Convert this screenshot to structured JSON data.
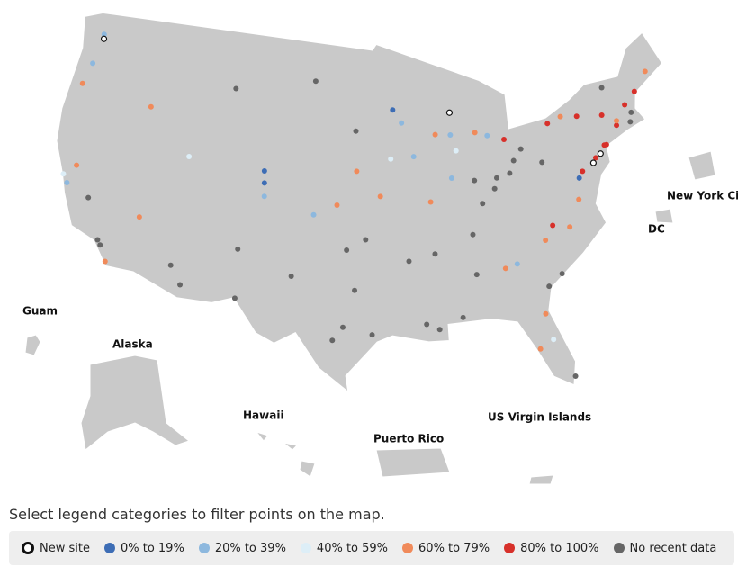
{
  "note_text": "Select legend categories to filter points on the map.",
  "insets": [
    "Guam",
    "Alaska",
    "Hawaii",
    "Puerto Rico",
    "US Virgin Islands",
    "New York Ci",
    "DC"
  ],
  "legend": [
    {
      "label": "New site",
      "color": "#ffffff"
    },
    {
      "label": "0% to 19%",
      "color": "#3d6db5"
    },
    {
      "label": "20% to 39%",
      "color": "#8db8de"
    },
    {
      "label": "40% to 59%",
      "color": "#ddeef7"
    },
    {
      "label": "60% to 79%",
      "color": "#f08a5a"
    },
    {
      "label": "80% to 100%",
      "color": "#d7302a"
    },
    {
      "label": "No recent data",
      "color": "#666666"
    }
  ],
  "points": [
    [
      -122.3,
      47.6,
      2
    ],
    [
      -122.6,
      45.5,
      2
    ],
    [
      -123,
      44,
      4
    ],
    [
      -122.4,
      37.8,
      3
    ],
    [
      -121.9,
      37.3,
      2
    ],
    [
      -121.5,
      38.6,
      4
    ],
    [
      -118.2,
      34.1,
      6
    ],
    [
      -117.2,
      32.8,
      4
    ],
    [
      -117.9,
      33.8,
      6
    ],
    [
      -119.8,
      36.7,
      6
    ],
    [
      -116.2,
      43.6,
      4
    ],
    [
      -111.9,
      40.8,
      3
    ],
    [
      -111.9,
      33.4,
      6
    ],
    [
      -110.9,
      32.2,
      6
    ],
    [
      -106.6,
      35.1,
      6
    ],
    [
      -104.9,
      39.7,
      1
    ],
    [
      -105,
      40.5,
      1
    ],
    [
      -104.8,
      38.8,
      2
    ],
    [
      -108.5,
      45.8,
      6
    ],
    [
      -100.8,
      46.8,
      6
    ],
    [
      -96.8,
      43.5,
      6
    ],
    [
      -96.7,
      40.8,
      4
    ],
    [
      -98.4,
      38.5,
      4
    ],
    [
      -97.5,
      35.5,
      6
    ],
    [
      -95.9,
      36.2,
      6
    ],
    [
      -96.8,
      32.8,
      6
    ],
    [
      -95.4,
      29.8,
      6
    ],
    [
      -98.5,
      29.4,
      6
    ],
    [
      -97.7,
      30.3,
      6
    ],
    [
      -93.3,
      44.9,
      1
    ],
    [
      -92.5,
      44,
      2
    ],
    [
      -93.6,
      41.6,
      3
    ],
    [
      -91.5,
      41.7,
      2
    ],
    [
      -90.2,
      38.6,
      4
    ],
    [
      -94.6,
      39.1,
      4
    ],
    [
      -92.3,
      34.7,
      6
    ],
    [
      -90.1,
      35.1,
      6
    ],
    [
      -90.1,
      30,
      6
    ],
    [
      -91.1,
      30.4,
      6
    ],
    [
      -88,
      43,
      2
    ],
    [
      -89.4,
      43.1,
      4
    ],
    [
      -87.6,
      41.9,
      3
    ],
    [
      -88.2,
      40.1,
      2
    ],
    [
      -86.2,
      39.8,
      6
    ],
    [
      -85.7,
      38.2,
      6
    ],
    [
      -84.5,
      39.1,
      6
    ],
    [
      -83,
      40,
      6
    ],
    [
      -81.7,
      41.5,
      6
    ],
    [
      -82.5,
      40.8,
      6
    ],
    [
      -84.2,
      39.8,
      6
    ],
    [
      -80,
      40.4,
      6
    ],
    [
      -83.1,
      42.3,
      5
    ],
    [
      -84.6,
      42.7,
      2
    ],
    [
      -85.7,
      43,
      4
    ],
    [
      -86.8,
      36.2,
      6
    ],
    [
      -84.4,
      33.7,
      4
    ],
    [
      -83.4,
      33.9,
      2
    ],
    [
      -81.1,
      32.1,
      6
    ],
    [
      -86.8,
      33.5,
      6
    ],
    [
      -88.2,
      30.7,
      6
    ],
    [
      -81.7,
      30.3,
      4
    ],
    [
      -82.5,
      28,
      4
    ],
    [
      -81.4,
      28.5,
      3
    ],
    [
      -80.2,
      25.8,
      6
    ],
    [
      -80.8,
      35.2,
      4
    ],
    [
      -78.6,
      35.8,
      4
    ],
    [
      -80,
      36.1,
      5
    ],
    [
      -79.9,
      32.8,
      6
    ],
    [
      -77.4,
      37.5,
      4
    ],
    [
      -77,
      38.9,
      1
    ],
    [
      -76.6,
      39.3,
      5
    ],
    [
      -75.2,
      40,
      5
    ],
    [
      -74.2,
      40.7,
      5
    ],
    [
      -74,
      40.7,
      5
    ],
    [
      -73.8,
      42.7,
      5
    ],
    [
      -76.1,
      43,
      5
    ],
    [
      -77.6,
      43.2,
      4
    ],
    [
      -78.9,
      42.9,
      5
    ],
    [
      -72.7,
      41.8,
      5
    ],
    [
      -71.4,
      41.8,
      6
    ],
    [
      -71.1,
      42.4,
      6
    ],
    [
      -72.6,
      42.1,
      4
    ],
    [
      -71.5,
      43,
      5
    ],
    [
      -70.3,
      43.7,
      5
    ],
    [
      -68.8,
      44.8,
      4
    ],
    [
      -73.2,
      44.5,
      6
    ],
    [
      -75.5,
      39.7,
      0
    ],
    [
      -74.7,
      40.2,
      0
    ],
    [
      -87.9,
      44.5,
      0
    ],
    [
      -122.2,
      47.3,
      0
    ],
    [
      -100.4,
      37.8,
      2
    ],
    [
      -102,
      33.6,
      6
    ],
    [
      -106.4,
      31.8,
      6
    ],
    [
      -115.2,
      36.2,
      4
    ]
  ]
}
